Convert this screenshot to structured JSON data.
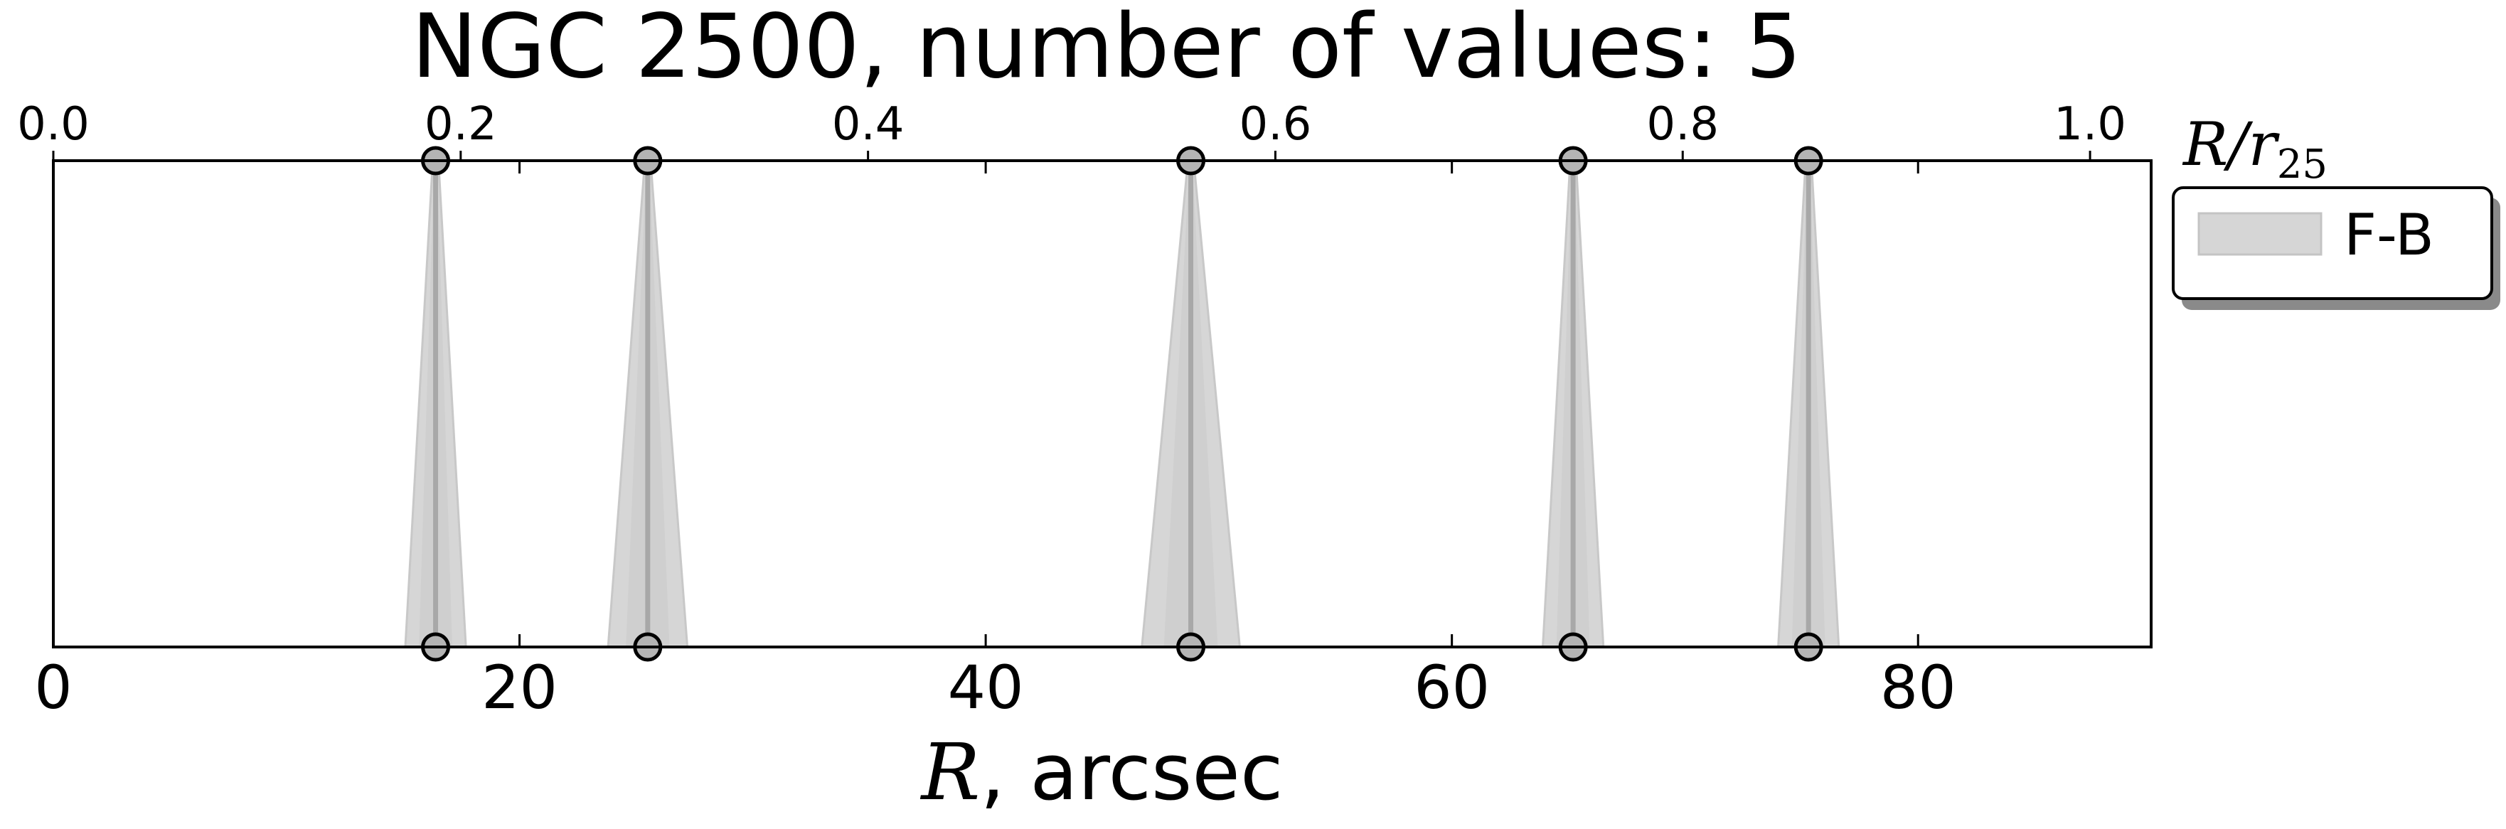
{
  "chart_data": {
    "type": "scatter",
    "title": "NGC 2500, number of values: 5",
    "xlabel_math": "R",
    "xlabel_rest": ", arcsec",
    "top_xlabel_main": "R/r",
    "top_xlabel_sub": "25",
    "xlim": [
      0,
      90
    ],
    "x_ticks": [
      {
        "value": 0,
        "label": "0"
      },
      {
        "value": 20,
        "label": "20"
      },
      {
        "value": 40,
        "label": "40"
      },
      {
        "value": 60,
        "label": "60"
      },
      {
        "value": 80,
        "label": "80"
      }
    ],
    "top_xlim": [
      0.0,
      1.03
    ],
    "top_ticks": [
      {
        "value": 0.0,
        "label": "0.0"
      },
      {
        "value": 0.2,
        "label": "0.2"
      },
      {
        "value": 0.4,
        "label": "0.4"
      },
      {
        "value": 0.6,
        "label": "0.6"
      },
      {
        "value": 0.8,
        "label": "0.8"
      },
      {
        "value": 1.0,
        "label": "1.0"
      }
    ],
    "grid": false,
    "legend": {
      "placement": "outside-right-top",
      "entries": [
        "F-B"
      ]
    },
    "series": [
      {
        "name": "F-B",
        "color": "#d6d6d6",
        "points": [
          {
            "x": 16.4,
            "err": 1.3
          },
          {
            "x": 25.5,
            "err": 1.7
          },
          {
            "x": 48.8,
            "err": 2.1
          },
          {
            "x": 65.2,
            "err": 1.3
          },
          {
            "x": 75.3,
            "err": 1.3
          }
        ]
      }
    ]
  }
}
